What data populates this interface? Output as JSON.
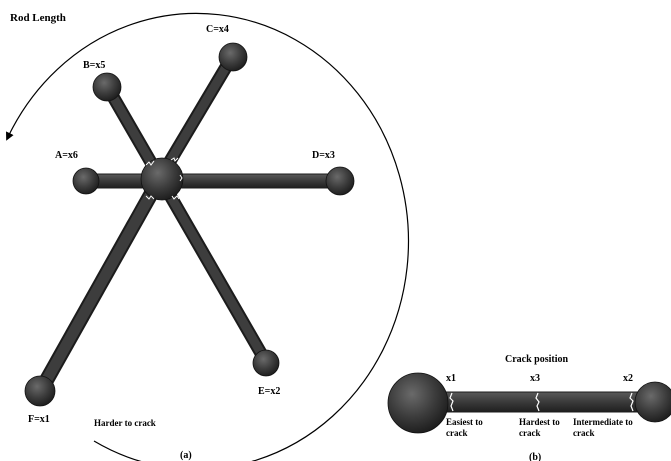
{
  "panel_a": {
    "title": "Rod Length",
    "caption": "(a)",
    "note": "Harder to crack",
    "rods": [
      {
        "id": "A",
        "label": "A=x6"
      },
      {
        "id": "B",
        "label": "B=x5"
      },
      {
        "id": "C",
        "label": "C=x4"
      },
      {
        "id": "D",
        "label": "D=x3"
      },
      {
        "id": "E",
        "label": "E=x2"
      },
      {
        "id": "F",
        "label": "F=x1"
      }
    ]
  },
  "panel_b": {
    "title": "Crack position",
    "caption": "(b)",
    "positions": [
      "x1",
      "x3",
      "x2"
    ],
    "notes": [
      {
        "line1": "Easiest to",
        "line2": "crack"
      },
      {
        "line1": "Hardest to",
        "line2": "crack"
      },
      {
        "line1": "Intermediate to",
        "line2": "crack"
      }
    ]
  },
  "colors": {
    "rod": "#3a3a3a",
    "rod_dark": "#1e1e1e",
    "hub_light": "#6a6a6a",
    "crack": "#ffffff"
  }
}
